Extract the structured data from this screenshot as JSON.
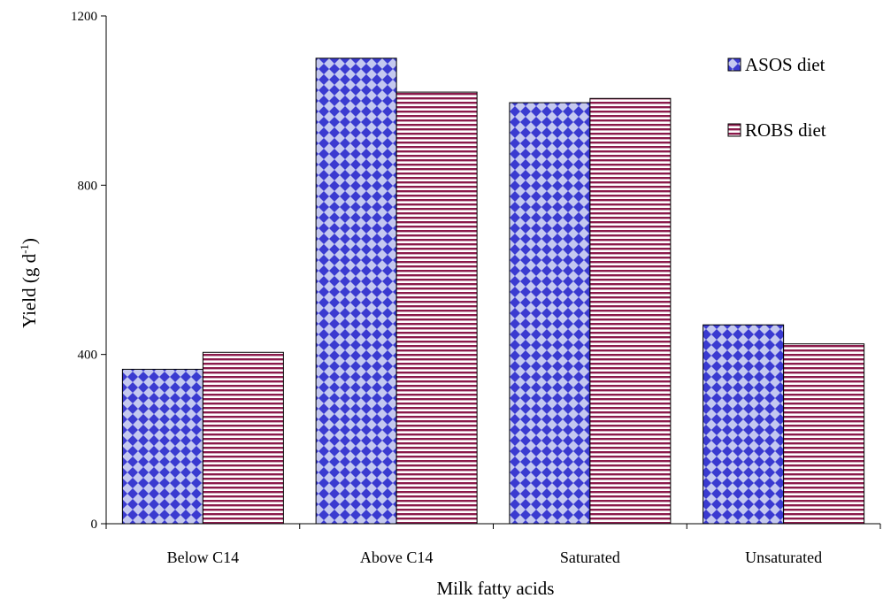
{
  "chart_data": {
    "type": "bar",
    "title": "",
    "xlabel": "Milk fatty acids",
    "ylabel_main": "Yield (g d",
    "ylabel_sup": "-1",
    "ylabel_close": ")",
    "ylim": [
      0,
      1200
    ],
    "yticks": [
      "0",
      "400",
      "800",
      "1200"
    ],
    "grid": false,
    "legend_position": "top-right",
    "categories": [
      "Below C14",
      "Above C14",
      "Saturated",
      "Unsaturated"
    ],
    "series": [
      {
        "name": "ASOS diet",
        "values": [
          365,
          1100,
          995,
          470
        ],
        "color": "#3a3ad0",
        "fill_light": "#c4c8f0",
        "pattern": "diamond-checker"
      },
      {
        "name": "ROBS diet",
        "values": [
          405,
          1020,
          1005,
          425
        ],
        "color": "#8b1a4b",
        "fill_light": "#ffffff",
        "pattern": "horizontal-stripes"
      }
    ]
  }
}
